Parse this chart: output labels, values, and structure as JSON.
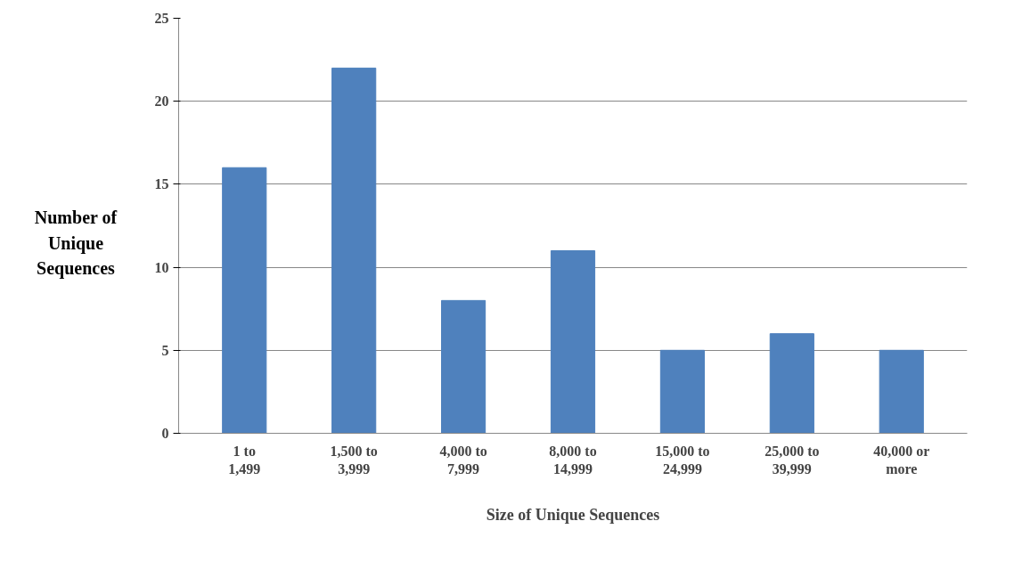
{
  "chart_data": {
    "type": "bar",
    "xlabel": "Size of Unique Sequences",
    "ylabel": "Number of Unique Sequences",
    "categories": [
      "1 to 1,499",
      "1,500 to 3,999",
      "4,000 to 7,999",
      "8,000 to 14,999",
      "15,000 to 24,999",
      "25,000 to 39,999",
      "40,000 or more"
    ],
    "values": [
      16,
      22,
      8,
      11,
      5,
      6,
      5
    ],
    "color": "#4f81bd",
    "ylim": [
      0,
      25
    ],
    "yticks": [
      0,
      5,
      10,
      15,
      20,
      25
    ],
    "grid": "y"
  }
}
